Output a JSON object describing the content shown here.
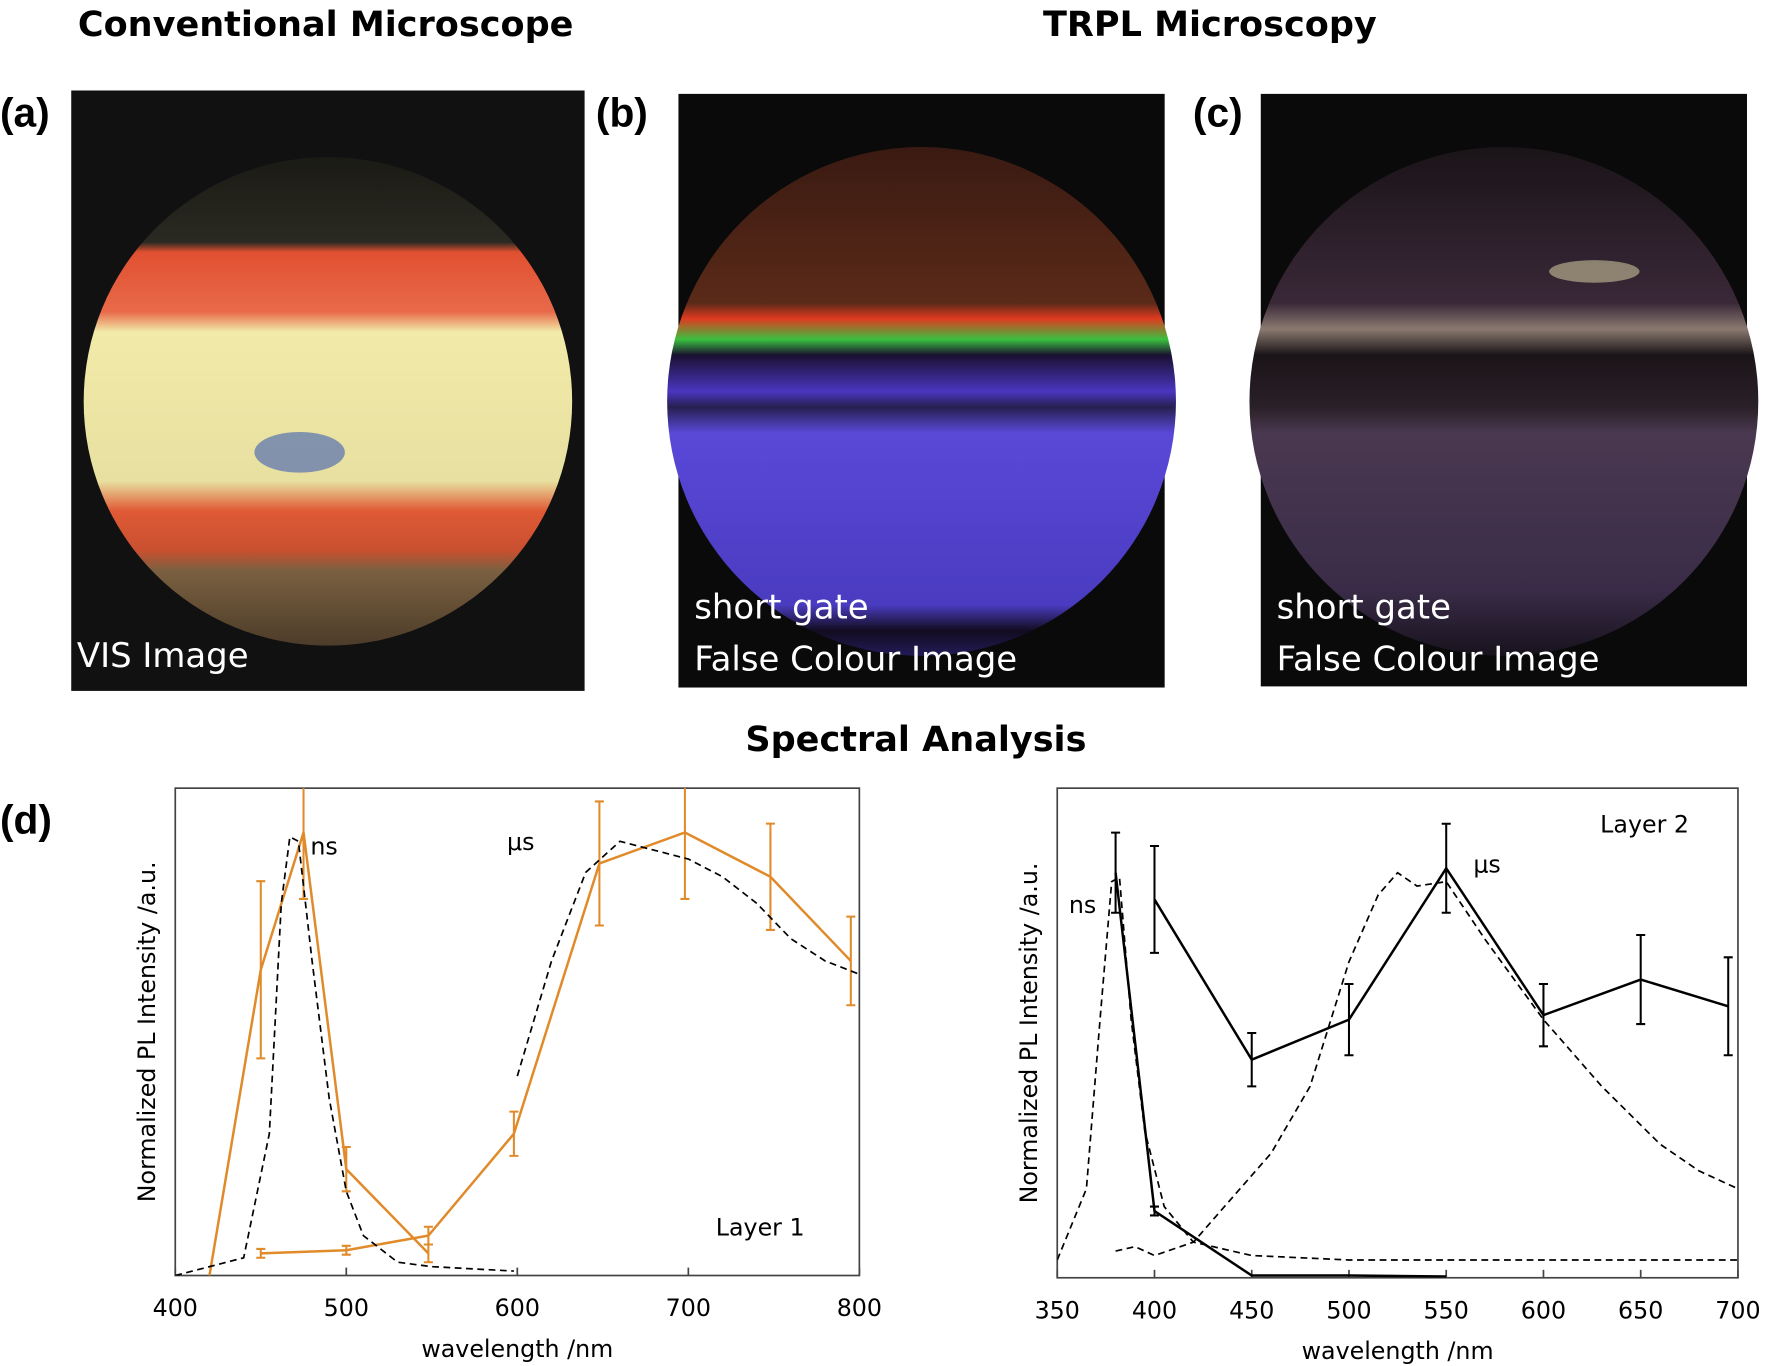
{
  "headers": {
    "left": "Conventional Microscope",
    "right": "TRPL Microscopy",
    "bottom": "Spectral Analysis"
  },
  "panels": [
    {
      "label": "(a)",
      "caption": [
        "VIS Image"
      ]
    },
    {
      "label": "(b)",
      "caption": [
        "short gate",
        "False Colour Image"
      ]
    },
    {
      "label": "(c)",
      "caption": [
        "short gate",
        "False Colour Image"
      ]
    },
    {
      "label": "(d)"
    }
  ],
  "chart_data": [
    {
      "type": "line",
      "xlabel": "wavelength /nm",
      "ylabel": "Normalized PL Intensity /a.u.",
      "annotations": [
        "ns",
        "μs",
        "Layer 1"
      ],
      "xlim": [
        400,
        800
      ],
      "xticks": [
        400,
        500,
        600,
        700,
        800
      ],
      "ylim": [
        0,
        1.1
      ],
      "series": [
        {
          "color": "#e08a2a",
          "style": "solid",
          "x": [
            420,
            450,
            475,
            500,
            548
          ],
          "values": [
            0,
            0.69,
            1.0,
            0.24,
            0.05
          ],
          "errors": [
            null,
            0.2,
            0.15,
            0.05,
            0.02
          ]
        },
        {
          "color": "#e08a2a",
          "style": "solid",
          "x": [
            450,
            500,
            548,
            598,
            648,
            698,
            748,
            795
          ],
          "values": [
            0.05,
            0.057,
            0.09,
            0.32,
            0.93,
            1.0,
            0.9,
            0.71
          ],
          "errors": [
            0.01,
            0.01,
            0.02,
            0.05,
            0.14,
            0.15,
            0.12,
            0.1
          ]
        },
        {
          "color": "#000000",
          "style": "dashed",
          "x": [
            400,
            440,
            455,
            462,
            467,
            472,
            480,
            490,
            500,
            510,
            530,
            550,
            598
          ],
          "values": [
            0,
            0.04,
            0.32,
            0.84,
            0.99,
            0.98,
            0.71,
            0.4,
            0.19,
            0.09,
            0.03,
            0.02,
            0.01
          ]
        },
        {
          "color": "#000000",
          "style": "dashed",
          "x": [
            600,
            610,
            620,
            640,
            660,
            680,
            700,
            720,
            740,
            760,
            780,
            800
          ],
          "values": [
            0.45,
            0.58,
            0.71,
            0.91,
            0.98,
            0.96,
            0.94,
            0.9,
            0.84,
            0.76,
            0.71,
            0.68
          ]
        }
      ]
    },
    {
      "type": "line",
      "xlabel": "wavelength /nm",
      "ylabel": "Normalized PL Intensity /a.u.",
      "annotations": [
        "ns",
        "μs",
        "Layer 2"
      ],
      "xlim": [
        350,
        700
      ],
      "xticks": [
        350,
        400,
        450,
        500,
        550,
        600,
        650,
        700
      ],
      "ylim": [
        0,
        1.1
      ],
      "series": [
        {
          "color": "#000000",
          "style": "solid",
          "x": [
            380,
            400,
            450,
            500,
            550
          ],
          "values": [
            0.91,
            0.15,
            0.005,
            0.005,
            0.003
          ],
          "errors": [
            0.09,
            0.01,
            null,
            null,
            null
          ]
        },
        {
          "color": "#000000",
          "style": "solid",
          "x": [
            400,
            450,
            500,
            550,
            600,
            650,
            695
          ],
          "values": [
            0.85,
            0.49,
            0.58,
            0.92,
            0.59,
            0.67,
            0.61
          ],
          "errors": [
            0.12,
            0.06,
            0.08,
            0.1,
            0.07,
            0.1,
            0.11
          ]
        },
        {
          "color": "#000000",
          "style": "dashed",
          "x": [
            350,
            365,
            372,
            378,
            382,
            388,
            395,
            405,
            420,
            450,
            500,
            600,
            700
          ],
          "values": [
            0.04,
            0.2,
            0.58,
            0.89,
            0.9,
            0.58,
            0.33,
            0.16,
            0.08,
            0.05,
            0.04,
            0.04,
            0.04
          ]
        },
        {
          "color": "#000000",
          "style": "dashed",
          "x": [
            380,
            390,
            400,
            420,
            440,
            460,
            480,
            500,
            515,
            525,
            535,
            550,
            570,
            600,
            630,
            660,
            680,
            700
          ],
          "values": [
            0.06,
            0.07,
            0.05,
            0.08,
            0.18,
            0.28,
            0.43,
            0.71,
            0.86,
            0.91,
            0.88,
            0.89,
            0.76,
            0.58,
            0.43,
            0.3,
            0.24,
            0.2
          ]
        }
      ]
    }
  ]
}
